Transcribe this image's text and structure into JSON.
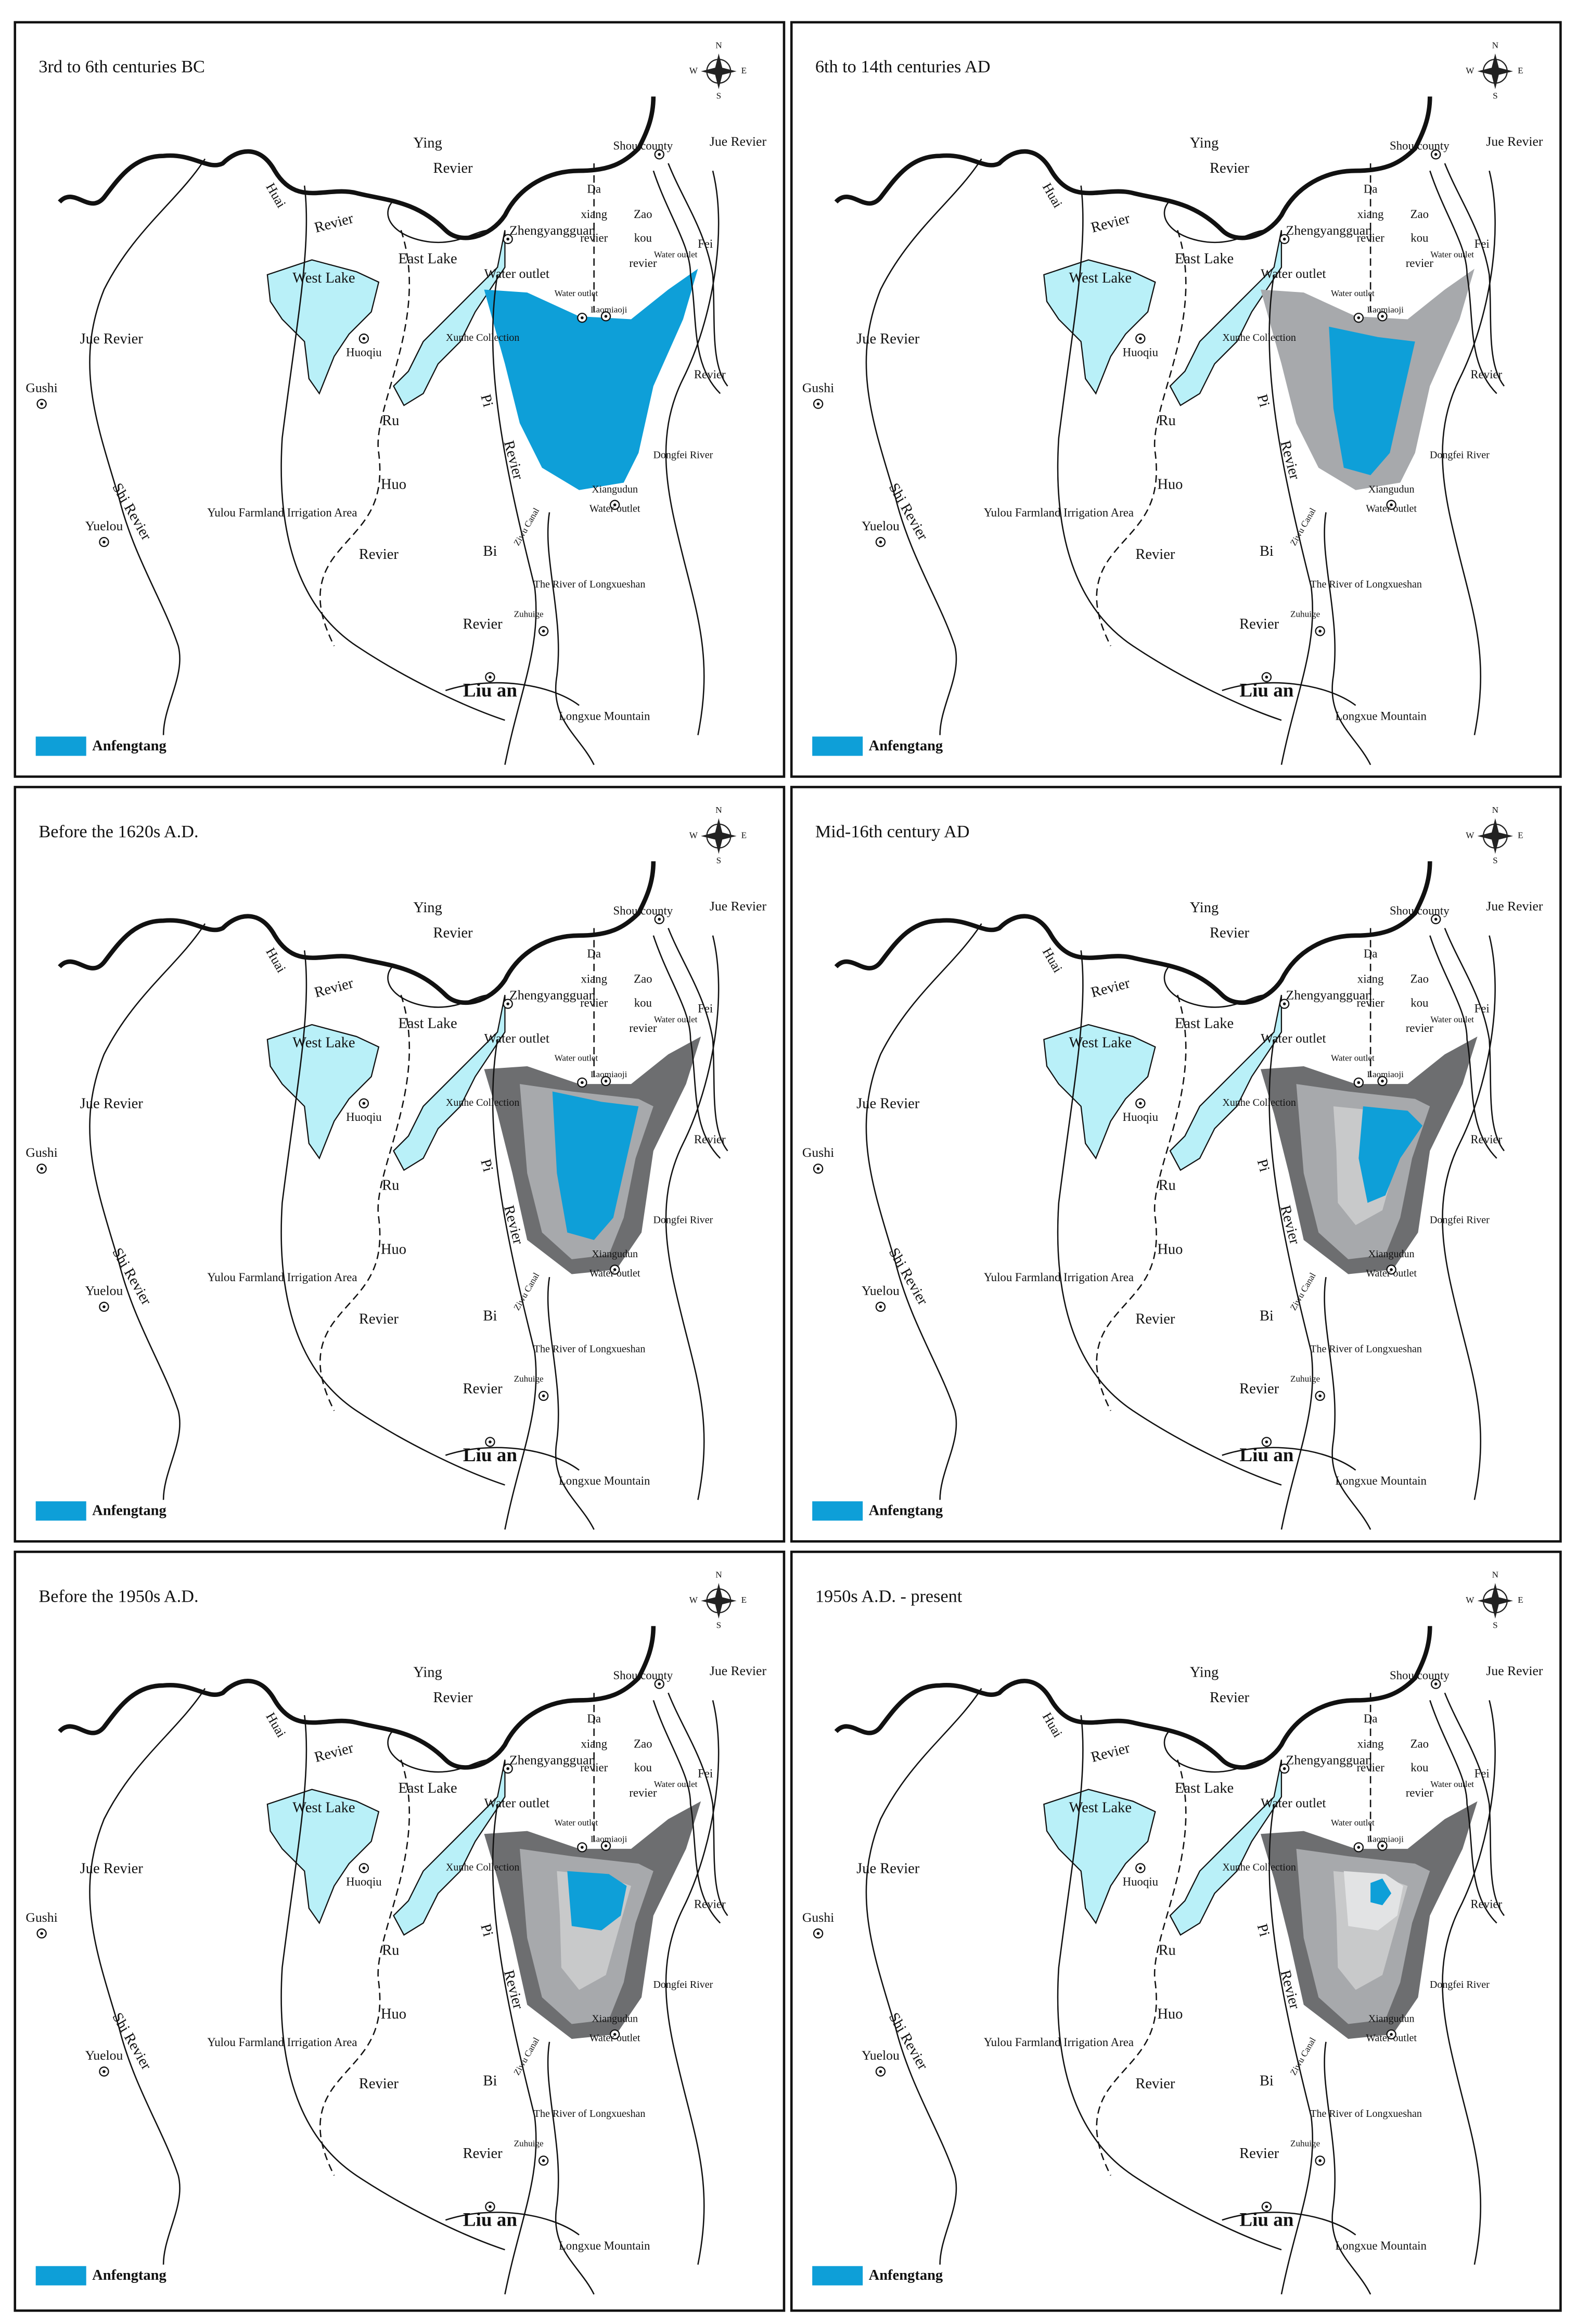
{
  "panels": [
    {
      "title": "3rd to 6th centuries BC"
    },
    {
      "title": "6th to 14th centuries AD"
    },
    {
      "title": "Before the 1620s A.D."
    },
    {
      "title": "Mid-16th century AD"
    },
    {
      "title": "Before the 1950s A.D."
    },
    {
      "title": "1950s A.D. - present"
    }
  ],
  "compass": [
    "N",
    "S",
    "W",
    "E"
  ],
  "legend": "Anfengtang",
  "map_labels": [
    "Ying",
    "Revier",
    "Shou county",
    "Jue Revier",
    "Huai",
    "Revier",
    "Da",
    "xiang",
    "revier",
    "Zao",
    "kou",
    "revier",
    "Zhengyangguan",
    "East Lake",
    "Fei",
    "Water outlet",
    "Water outlet",
    "Laomiaoji",
    "Water outlet",
    "West Lake",
    "Huoqiu",
    "Xunhe Collection",
    "Jue Revier",
    "Revier",
    "Gushi",
    "Pi",
    "Ru",
    "Revier",
    "Dongfei River",
    "Huo",
    "Xiangudun",
    "Shi Revier",
    "Yulou Farmland Irrigation Area",
    "Ziwu Canal",
    "Water outlet",
    "Yuelou",
    "Revier",
    "Bi",
    "The River of Longxueshan",
    "Zuhuige",
    "Revier",
    "Liu an",
    "Longxue Mountain"
  ]
}
